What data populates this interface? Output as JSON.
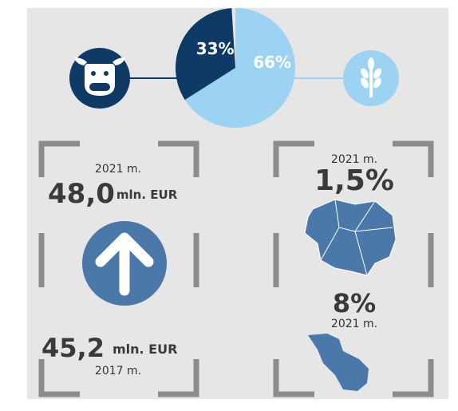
{
  "chart_data": {
    "type": "pie",
    "values": [
      33,
      66
    ],
    "value_labels": [
      "33%",
      "66%"
    ],
    "colors": [
      "#0f3a66",
      "#9dd3f2"
    ]
  },
  "left_panel": {
    "year_top": "2021 m.",
    "value_top": "48,0",
    "unit_top": "mln. EUR",
    "value_bottom": "45,2",
    "unit_bottom": "mln. EUR",
    "year_bottom": "2017 m."
  },
  "right_panel": {
    "year_top": "2021 m.",
    "value_top": "1,5%",
    "value_bottom": "8%",
    "year_bottom": "2021 m."
  }
}
